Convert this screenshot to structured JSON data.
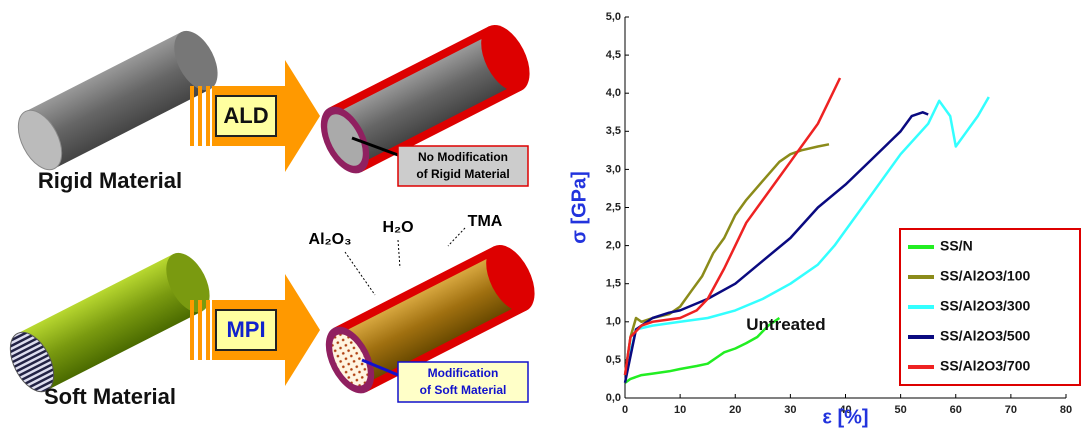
{
  "diagram": {
    "rigid": {
      "process": "ALD",
      "label": "Rigid Material",
      "note": [
        "No Modification",
        "of Rigid Material"
      ]
    },
    "soft": {
      "process": "MPI",
      "label": "Soft Material",
      "note": [
        "Modification",
        "of Soft Material"
      ],
      "species": [
        "Al₂O₃",
        "H₂O",
        "TMA"
      ]
    }
  },
  "chart_data": {
    "type": "line",
    "x_label": "ε [%]",
    "y_label": "σ [GPa]",
    "annotation": "Untreated",
    "xlim": [
      0,
      80
    ],
    "xticks": [
      0,
      10,
      20,
      30,
      40,
      50,
      60,
      70,
      80
    ],
    "ylim": [
      0,
      5
    ],
    "yticks": [
      {
        "value": 0,
        "label": "0,0"
      },
      {
        "value": 0.5,
        "label": "0,5"
      },
      {
        "value": 1,
        "label": "1,0"
      },
      {
        "value": 1.5,
        "label": "1,5"
      },
      {
        "value": 2,
        "label": "2,0"
      },
      {
        "value": 2.5,
        "label": "2,5"
      },
      {
        "value": 3,
        "label": "3,0"
      },
      {
        "value": 3.5,
        "label": "3,5"
      },
      {
        "value": 4,
        "label": "4,0"
      },
      {
        "value": 4.5,
        "label": "4,5"
      },
      {
        "value": 5,
        "label": "5,0"
      }
    ],
    "legend": "lower right",
    "series": [
      {
        "name": "SS/N",
        "color": "#22ee22",
        "x": [
          0,
          1,
          3,
          5,
          8,
          10,
          13,
          15,
          17,
          18,
          20,
          22,
          24,
          26,
          28
        ],
        "values": [
          0.2,
          0.25,
          0.3,
          0.32,
          0.35,
          0.38,
          0.42,
          0.45,
          0.55,
          0.6,
          0.65,
          0.72,
          0.8,
          0.95,
          1.05
        ]
      },
      {
        "name": "SS/Al2O3/100",
        "color": "#8b8b1a",
        "x": [
          0,
          1,
          2,
          3,
          5,
          8,
          10,
          12,
          14,
          16,
          18,
          20,
          22,
          25,
          28,
          30,
          32,
          35,
          37
        ],
        "values": [
          0.3,
          0.8,
          1.05,
          1.0,
          1.05,
          1.1,
          1.2,
          1.4,
          1.6,
          1.9,
          2.1,
          2.4,
          2.6,
          2.85,
          3.1,
          3.2,
          3.25,
          3.3,
          3.33
        ]
      },
      {
        "name": "SS/Al2O3/300",
        "color": "#33ffff",
        "x": [
          0,
          2,
          5,
          10,
          15,
          20,
          25,
          30,
          35,
          38,
          40,
          45,
          50,
          55,
          57,
          59,
          60,
          62,
          64,
          66
        ],
        "values": [
          0.3,
          0.9,
          0.95,
          1.0,
          1.05,
          1.15,
          1.3,
          1.5,
          1.75,
          2.0,
          2.2,
          2.7,
          3.2,
          3.6,
          3.9,
          3.7,
          3.3,
          3.5,
          3.7,
          3.95
        ]
      },
      {
        "name": "SS/Al2O3/500",
        "color": "#0a0a80",
        "x": [
          0,
          2,
          5,
          8,
          10,
          15,
          20,
          25,
          30,
          35,
          40,
          45,
          50,
          52,
          54,
          55
        ],
        "values": [
          0.2,
          0.9,
          1.05,
          1.12,
          1.15,
          1.3,
          1.5,
          1.8,
          2.1,
          2.5,
          2.8,
          3.15,
          3.5,
          3.7,
          3.75,
          3.72
        ]
      },
      {
        "name": "SS/Al2O3/700",
        "color": "#ee2222",
        "x": [
          0,
          1,
          3,
          5,
          10,
          13,
          15,
          18,
          20,
          22,
          25,
          28,
          30,
          32,
          35,
          37,
          39
        ],
        "values": [
          0.3,
          0.8,
          0.95,
          1.0,
          1.05,
          1.15,
          1.3,
          1.7,
          2.0,
          2.3,
          2.6,
          2.9,
          3.1,
          3.3,
          3.6,
          3.9,
          4.2
        ]
      }
    ]
  }
}
